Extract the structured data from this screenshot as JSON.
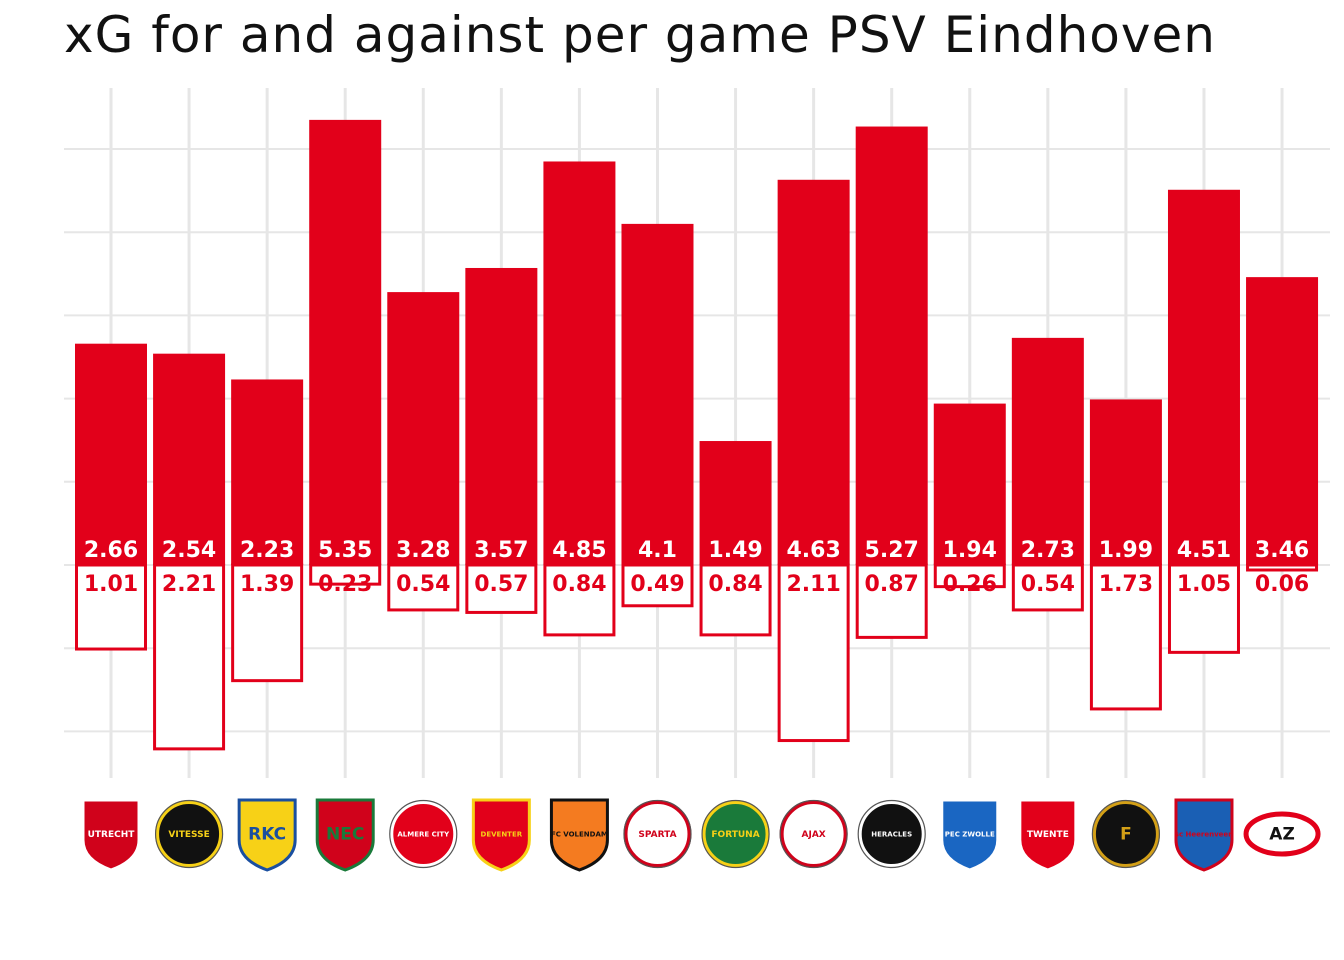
{
  "chart_data": {
    "type": "bar",
    "title": "xG for and against per game PSV Eindhoven",
    "xlabel": "",
    "ylabel": "",
    "grid": true,
    "ylim": [
      -2.3,
      5.6
    ],
    "categories": [
      "Utrecht",
      "Vitesse",
      "RKC Waalwijk",
      "NEC Nijmegen",
      "Almere City",
      "Go Ahead Eagles",
      "FC Volendam",
      "Sparta Rotterdam",
      "Fortuna Sittard",
      "Ajax",
      "Heracles",
      "PEC Zwolle",
      "FC Twente",
      "Feyenoord",
      "sc Heerenveen",
      "AZ"
    ],
    "series": [
      {
        "values": [
          2.66,
          2.54,
          2.23,
          5.35,
          3.28,
          3.57,
          4.85,
          4.1,
          1.49,
          4.63,
          5.27,
          1.94,
          2.73,
          1.99,
          4.51,
          3.46
        ]
      },
      {
        "values": [
          1.01,
          2.21,
          1.39,
          0.23,
          0.54,
          0.57,
          0.84,
          0.49,
          0.84,
          2.11,
          0.87,
          0.26,
          0.54,
          1.73,
          1.05,
          0.06
        ]
      }
    ],
    "value_labels_for": [
      "2.66",
      "2.54",
      "2.23",
      "5.35",
      "3.28",
      "3.57",
      "4.85",
      "4.1",
      "1.49",
      "4.63",
      "5.27",
      "1.94",
      "2.73",
      "1.99",
      "4.51",
      "3.46"
    ],
    "value_labels_against": [
      "1.01",
      "2.21",
      "1.39",
      "0.23",
      "0.54",
      "0.57",
      "0.84",
      "0.49",
      "0.84",
      "2.11",
      "0.87",
      "0.26",
      "0.54",
      "1.73",
      "1.05",
      "0.06"
    ]
  },
  "colors": {
    "bar_for": "#e2001a",
    "bar_against_stroke": "#e2001a",
    "bar_against_fill": "#ffffff",
    "label_for": "#ffffff",
    "label_against": "#e2001a",
    "grid": "#e6e6e6",
    "title": "#111111"
  },
  "logos": [
    {
      "name": "utrecht",
      "primary": "#d0021b",
      "secondary": "#ffffff",
      "text": "UTRECHT"
    },
    {
      "name": "vitesse",
      "primary": "#111111",
      "secondary": "#f7d117",
      "text": "VITESSE"
    },
    {
      "name": "rkc",
      "primary": "#f7d117",
      "secondary": "#1a4fa0",
      "text": "RKC"
    },
    {
      "name": "nec",
      "primary": "#d0021b",
      "secondary": "#1a7a3a",
      "text": "NEC"
    },
    {
      "name": "almere",
      "primary": "#e2001a",
      "secondary": "#ffffff",
      "text": "ALMERE CITY"
    },
    {
      "name": "gae",
      "primary": "#e2001a",
      "secondary": "#f7d117",
      "text": "DEVENTER"
    },
    {
      "name": "volendam",
      "primary": "#f47b20",
      "secondary": "#111111",
      "text": "FC VOLENDAM"
    },
    {
      "name": "sparta",
      "primary": "#ffffff",
      "secondary": "#d0021b",
      "text": "SPARTA"
    },
    {
      "name": "fortuna",
      "primary": "#1a7a3a",
      "secondary": "#f7d117",
      "text": "FORTUNA"
    },
    {
      "name": "ajax",
      "primary": "#ffffff",
      "secondary": "#d0021b",
      "text": "AJAX"
    },
    {
      "name": "heracles",
      "primary": "#111111",
      "secondary": "#ffffff",
      "text": "HERACLES"
    },
    {
      "name": "pec",
      "primary": "#1a66c2",
      "secondary": "#ffffff",
      "text": "PEC ZWOLLE"
    },
    {
      "name": "twente",
      "primary": "#e2001a",
      "secondary": "#ffffff",
      "text": "TWENTE"
    },
    {
      "name": "feyenoord",
      "primary": "#111111",
      "secondary": "#d4a017",
      "text": "F"
    },
    {
      "name": "heerenveen",
      "primary": "#1a5fb4",
      "secondary": "#d0021b",
      "text": "sc Heerenveen"
    },
    {
      "name": "az",
      "primary": "#e2001a",
      "secondary": "#111111",
      "text": "AZ"
    }
  ]
}
